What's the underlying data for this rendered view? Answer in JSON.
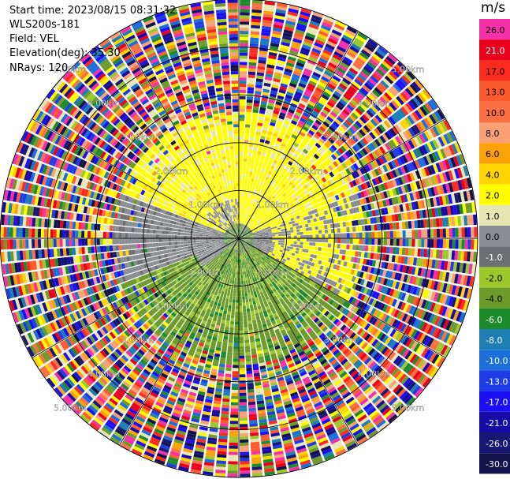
{
  "header": {
    "start_time": "Start time: 2023/08/15 08:31:32",
    "instrument": "WLS200s-181",
    "field": "Field: VEL",
    "elevation": "Elevation(deg): 35.30",
    "nrays": "NRays: 120"
  },
  "colorbar": {
    "unit": "m/s",
    "levels": [
      {
        "label": "26.0",
        "color": "#f52fa6"
      },
      {
        "label": "21.0",
        "color": "#e8001c"
      },
      {
        "label": "17.0",
        "color": "#fb2c1e"
      },
      {
        "label": "13.0",
        "color": "#fd5a2d"
      },
      {
        "label": "10.0",
        "color": "#fc6f43"
      },
      {
        "label": "8.0",
        "color": "#f9a076"
      },
      {
        "label": "6.0",
        "color": "#fba208"
      },
      {
        "label": "4.0",
        "color": "#ffd400"
      },
      {
        "label": "2.0",
        "color": "#fffd00"
      },
      {
        "label": "1.0",
        "color": "#e6e6b5"
      },
      {
        "label": "0.0",
        "color": "#8a8d91"
      },
      {
        "label": "-1.0",
        "color": "#6d6f72"
      },
      {
        "label": "-2.0",
        "color": "#9cc82e"
      },
      {
        "label": "-4.0",
        "color": "#6c9a2b"
      },
      {
        "label": "-6.0",
        "color": "#1d8a2c"
      },
      {
        "label": "-8.0",
        "color": "#1d7fb3"
      },
      {
        "label": "-10.0",
        "color": "#1c6ed9"
      },
      {
        "label": "-13.0",
        "color": "#1f3de6"
      },
      {
        "label": "-17.0",
        "color": "#1c0ff5"
      },
      {
        "label": "-21.0",
        "color": "#180aa6"
      },
      {
        "label": "-26.0",
        "color": "#1a1673"
      },
      {
        "label": "-30.0",
        "color": "#14124a"
      }
    ]
  },
  "chart_data": {
    "type": "heatmap",
    "subtype": "polar PPI",
    "field": "VEL",
    "unit": "m/s",
    "nrays": 120,
    "elevation_deg": 35.3,
    "range_rings_km": [
      1.0,
      2.0,
      3.0,
      4.0,
      5.0
    ],
    "max_range_km": 5.0,
    "ring_labels": [
      "1.00km",
      "2.00km",
      "3.00km",
      "4.00km",
      "5.00km"
    ],
    "spokes_deg": [
      0,
      30,
      60,
      90,
      120,
      150,
      180,
      210,
      240,
      270,
      300,
      330
    ],
    "velocity_pattern": {
      "near_field_note": "positive (yellow) to the north, negative (green) to the south, near-zero (gray) to the west; noise beyond ~2.6 km",
      "valid_range_km": 2.6
    }
  }
}
